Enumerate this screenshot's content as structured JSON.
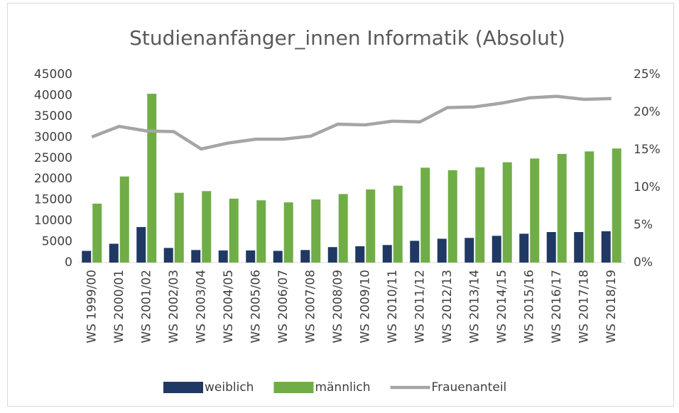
{
  "chart_data": {
    "type": "bar-line",
    "title": "Studienanfänger_innen Informatik (Absolut)",
    "categories": [
      "WS 1999/00",
      "WS 2000/01",
      "WS 2001/02",
      "WS 2002/03",
      "WS 2003/04",
      "WS 2004/05",
      "WS 2005/06",
      "WS 2006/07",
      "WS 2007/08",
      "WS 2008/09",
      "WS 2009/10",
      "WS 2010/11",
      "WS 2011/12",
      "WS 2012/13",
      "WS 2013/14",
      "WS 2014/15",
      "WS 2015/16",
      "WS 2016/17",
      "WS 2017/18",
      "WS 2018/19"
    ],
    "series": [
      {
        "name": "weiblich",
        "color": "#203864",
        "type": "bar",
        "values": [
          2800,
          4500,
          8500,
          3500,
          3000,
          2900,
          2900,
          2800,
          3000,
          3700,
          3900,
          4200,
          5200,
          5700,
          5900,
          6400,
          6900,
          7300,
          7300,
          7500
        ]
      },
      {
        "name": "männlich",
        "color": "#70ad47",
        "type": "bar",
        "values": [
          14100,
          20600,
          40400,
          16700,
          17100,
          15300,
          14900,
          14400,
          15100,
          16400,
          17500,
          18400,
          22700,
          22100,
          22800,
          24000,
          24900,
          26000,
          26600,
          27300
        ]
      },
      {
        "name": "Frauenanteil",
        "color": "#a5a5a5",
        "type": "line",
        "axis": "y2",
        "values": [
          16.7,
          18.1,
          17.5,
          17.4,
          15.1,
          15.9,
          16.4,
          16.4,
          16.8,
          18.4,
          18.3,
          18.8,
          18.7,
          20.6,
          20.7,
          21.2,
          21.9,
          22.1,
          21.7,
          21.8
        ]
      }
    ],
    "ylim": [
      0,
      45000
    ],
    "yticks": [
      0,
      5000,
      10000,
      15000,
      20000,
      25000,
      30000,
      35000,
      40000,
      45000
    ],
    "y2lim": [
      0,
      25
    ],
    "y2ticks": [
      {
        "value": 0,
        "label": "0%"
      },
      {
        "value": 5,
        "label": "5%"
      },
      {
        "value": 10,
        "label": "10%"
      },
      {
        "value": 15,
        "label": "15%"
      },
      {
        "value": 20,
        "label": "20%"
      },
      {
        "value": 25,
        "label": "25%"
      }
    ]
  }
}
